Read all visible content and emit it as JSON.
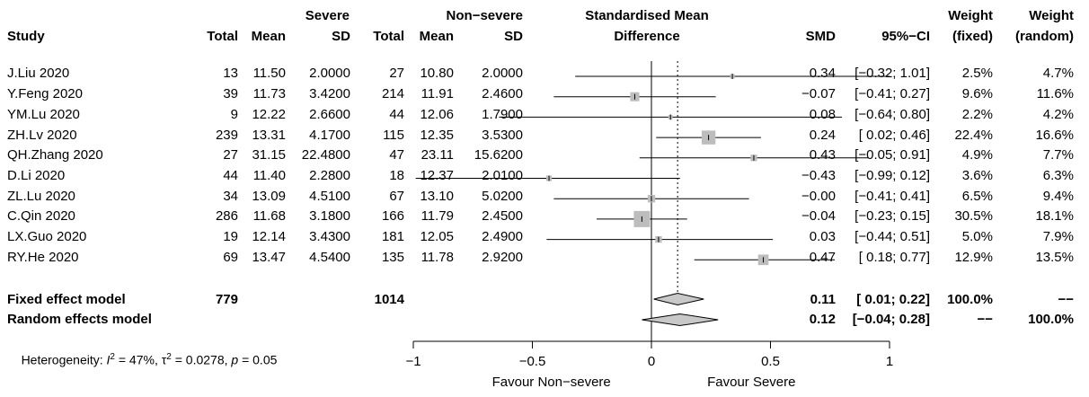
{
  "header": {
    "group1": "Severe",
    "group2": "Non−severe",
    "smd_line1": "Standardised Mean",
    "smd_line2": "Difference",
    "study": "Study",
    "total1": "Total",
    "mean1": "Mean",
    "sd1": "SD",
    "total2": "Total",
    "mean2": "Mean",
    "sd2": "SD",
    "smd": "SMD",
    "ci": "95%−CI",
    "weight_fixed_line1": "Weight",
    "weight_fixed_line2": "(fixed)",
    "weight_random_line1": "Weight",
    "weight_random_line2": "(random)"
  },
  "studies": [
    {
      "name": "J.Liu 2020",
      "total1": "13",
      "mean1": "11.50",
      "sd1": "2.0000",
      "total2": "27",
      "mean2": "10.80",
      "sd2": "2.0000",
      "smd": "0.34",
      "ci": "[−0.32; 1.01]",
      "wfixed": "2.5%",
      "wrandom": "4.7%"
    },
    {
      "name": "Y.Feng 2020",
      "total1": "39",
      "mean1": "11.73",
      "sd1": "3.4200",
      "total2": "214",
      "mean2": "11.91",
      "sd2": "2.4600",
      "smd": "−0.07",
      "ci": "[−0.41; 0.27]",
      "wfixed": "9.6%",
      "wrandom": "11.6%"
    },
    {
      "name": "YM.Lu 2020",
      "total1": "9",
      "mean1": "12.22",
      "sd1": "2.6600",
      "total2": "44",
      "mean2": "12.06",
      "sd2": "1.7900",
      "smd": "0.08",
      "ci": "[−0.64; 0.80]",
      "wfixed": "2.2%",
      "wrandom": "4.2%"
    },
    {
      "name": "ZH.Lv 2020",
      "total1": "239",
      "mean1": "13.31",
      "sd1": "4.1700",
      "total2": "115",
      "mean2": "12.35",
      "sd2": "3.5300",
      "smd": "0.24",
      "ci": "[ 0.02; 0.46]",
      "wfixed": "22.4%",
      "wrandom": "16.6%"
    },
    {
      "name": "QH.Zhang 2020",
      "total1": "27",
      "mean1": "31.15",
      "sd1": "22.4800",
      "total2": "47",
      "mean2": "23.11",
      "sd2": "15.6200",
      "smd": "0.43",
      "ci": "[−0.05; 0.91]",
      "wfixed": "4.9%",
      "wrandom": "7.7%"
    },
    {
      "name": "D.Li 2020",
      "total1": "44",
      "mean1": "11.40",
      "sd1": "2.2800",
      "total2": "18",
      "mean2": "12.37",
      "sd2": "2.0100",
      "smd": "−0.43",
      "ci": "[−0.99; 0.12]",
      "wfixed": "3.6%",
      "wrandom": "6.3%"
    },
    {
      "name": "ZL.Lu 2020",
      "total1": "34",
      "mean1": "13.09",
      "sd1": "4.5100",
      "total2": "67",
      "mean2": "13.10",
      "sd2": "5.0200",
      "smd": "−0.00",
      "ci": "[−0.41; 0.41]",
      "wfixed": "6.5%",
      "wrandom": "9.4%"
    },
    {
      "name": "C.Qin 2020",
      "total1": "286",
      "mean1": "11.68",
      "sd1": "3.1800",
      "total2": "166",
      "mean2": "11.79",
      "sd2": "2.4500",
      "smd": "−0.04",
      "ci": "[−0.23; 0.15]",
      "wfixed": "30.5%",
      "wrandom": "18.1%"
    },
    {
      "name": "LX.Guo 2020",
      "total1": "19",
      "mean1": "12.14",
      "sd1": "3.4300",
      "total2": "181",
      "mean2": "12.05",
      "sd2": "2.4900",
      "smd": "0.03",
      "ci": "[−0.44; 0.51]",
      "wfixed": "5.0%",
      "wrandom": "7.9%"
    },
    {
      "name": "RY.He 2020",
      "total1": "69",
      "mean1": "13.47",
      "sd1": "4.5400",
      "total2": "135",
      "mean2": "11.78",
      "sd2": "2.9200",
      "smd": "0.47",
      "ci": "[ 0.18; 0.77]",
      "wfixed": "12.9%",
      "wrandom": "13.5%"
    }
  ],
  "summary": {
    "fixed": {
      "name": "Fixed effect model",
      "total1": "779",
      "total2": "1014",
      "smd": "0.11",
      "ci": "[ 0.01; 0.22]",
      "wfixed": "100.0%",
      "wrandom": "−−"
    },
    "random": {
      "name": "Random effects model",
      "smd": "0.12",
      "ci": "[−0.04; 0.28]",
      "wfixed": "−−",
      "wrandom": "100.0%"
    }
  },
  "heterogeneity": {
    "p1": "Heterogeneity: ",
    "i_symbol": "I",
    "sup2a": "2",
    "p2": " = 47%, ",
    "tau_symbol": "τ",
    "sup2b": "2",
    "p3": " = 0.0278, ",
    "p_symbol": "p",
    "p4": " = 0.05"
  },
  "axis": {
    "favour_left": "Favour Non−severe",
    "favour_right": "Favour Severe"
  },
  "colors": {
    "box": "#bdbdbd",
    "diamond": "#c8c8c8",
    "line": "#000000"
  },
  "chart_data": {
    "type": "forest",
    "xlim": [
      -1,
      1
    ],
    "ticks": [
      -1,
      -0.5,
      0,
      0.5,
      1
    ],
    "tick_labels": [
      "−1",
      "−0.5",
      "0",
      "0.5",
      "1"
    ],
    "points": [
      {
        "study": "J.Liu 2020",
        "est": 0.34,
        "lo": -0.32,
        "hi": 1.01,
        "weight_fixed": 2.5
      },
      {
        "study": "Y.Feng 2020",
        "est": -0.07,
        "lo": -0.41,
        "hi": 0.27,
        "weight_fixed": 9.6
      },
      {
        "study": "YM.Lu 2020",
        "est": 0.08,
        "lo": -0.64,
        "hi": 0.8,
        "weight_fixed": 2.2
      },
      {
        "study": "ZH.Lv 2020",
        "est": 0.24,
        "lo": 0.02,
        "hi": 0.46,
        "weight_fixed": 22.4
      },
      {
        "study": "QH.Zhang 2020",
        "est": 0.43,
        "lo": -0.05,
        "hi": 0.91,
        "weight_fixed": 4.9
      },
      {
        "study": "D.Li 2020",
        "est": -0.43,
        "lo": -0.99,
        "hi": 0.12,
        "weight_fixed": 3.6
      },
      {
        "study": "ZL.Lu 2020",
        "est": -0.0,
        "lo": -0.41,
        "hi": 0.41,
        "weight_fixed": 6.5
      },
      {
        "study": "C.Qin 2020",
        "est": -0.04,
        "lo": -0.23,
        "hi": 0.15,
        "weight_fixed": 30.5
      },
      {
        "study": "LX.Guo 2020",
        "est": 0.03,
        "lo": -0.44,
        "hi": 0.51,
        "weight_fixed": 5.0
      },
      {
        "study": "RY.He 2020",
        "est": 0.47,
        "lo": 0.18,
        "hi": 0.77,
        "weight_fixed": 12.9
      }
    ],
    "fixed": {
      "est": 0.11,
      "lo": 0.01,
      "hi": 0.22
    },
    "random": {
      "est": 0.12,
      "lo": -0.04,
      "hi": 0.28
    }
  }
}
